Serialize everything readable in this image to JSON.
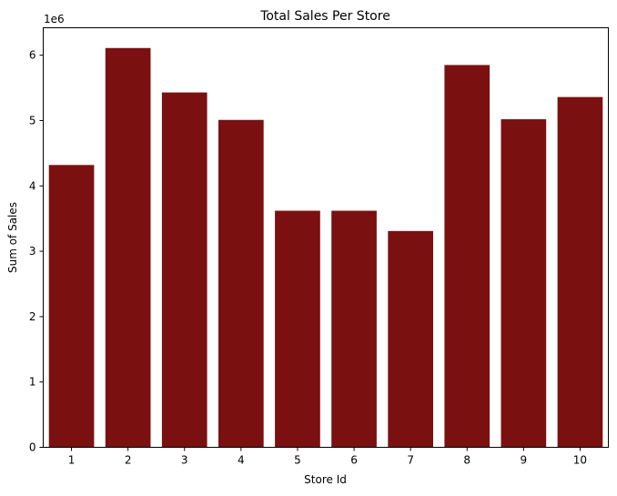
{
  "chart_data": {
    "type": "bar",
    "title": "Total Sales Per Store",
    "xlabel": "Store Id",
    "ylabel": "Sum of Sales",
    "y_offset_label": "1e6",
    "categories": [
      "1",
      "2",
      "3",
      "4",
      "5",
      "6",
      "7",
      "8",
      "9",
      "10"
    ],
    "values": [
      4.32,
      6.11,
      5.43,
      5.01,
      3.62,
      3.62,
      3.31,
      5.85,
      5.02,
      5.36
    ],
    "value_scale": 1000000,
    "ylim": [
      0,
      6.42
    ],
    "yticks": [
      "0",
      "1",
      "2",
      "3",
      "4",
      "5",
      "6"
    ],
    "grid": false,
    "bar_color": "#7b1010"
  }
}
